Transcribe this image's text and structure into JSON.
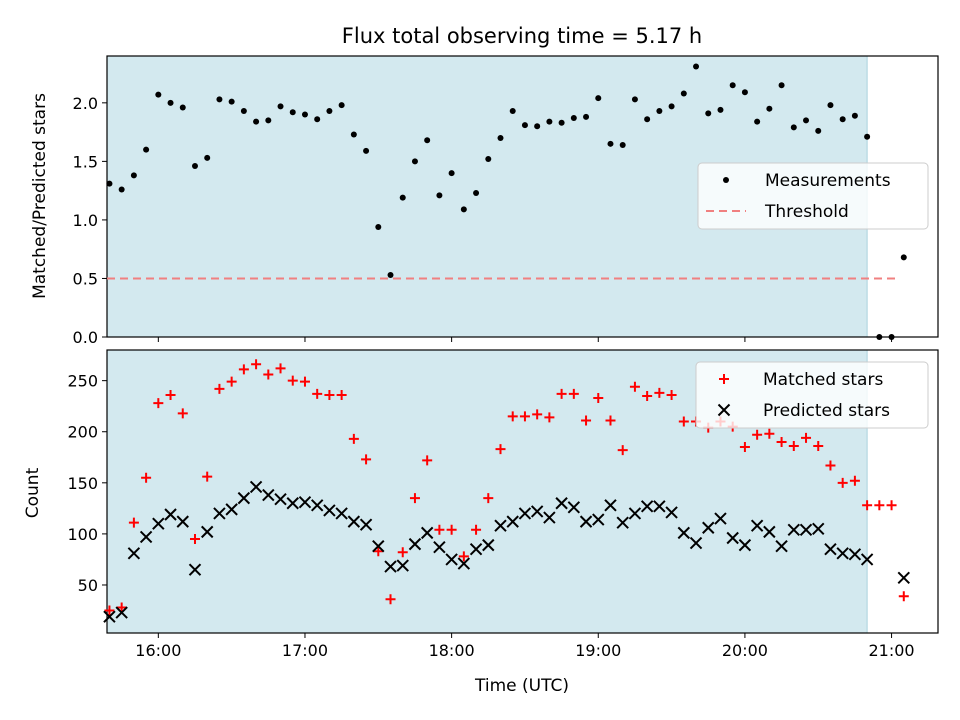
{
  "title": "Flux total observing time = 5.17 h",
  "chart_data": [
    {
      "type": "scatter",
      "ylabel": "Matched/Predicted stars",
      "xlabel": "",
      "xlim": [
        "15:39",
        "21:19"
      ],
      "ylim": [
        0,
        2.4
      ],
      "yticks": [
        "0.0",
        "0.5",
        "1.0",
        "1.5",
        "2.0"
      ],
      "yticks_values": [
        0,
        0.5,
        1.0,
        1.5,
        2.0
      ],
      "observing_window": [
        "15:39",
        "20:50"
      ],
      "legend": {
        "location": "center-right",
        "entries": [
          {
            "label": "Measurements",
            "marker": "dot",
            "color": "#000000"
          },
          {
            "label": "Threshold",
            "marker": "dashed-line",
            "color": "#f08080"
          }
        ]
      },
      "threshold": {
        "value": 0.5,
        "x": [
          "15:39",
          "21:03"
        ]
      },
      "series": [
        {
          "name": "Measurements",
          "points": [
            [
              "15:40",
              1.31
            ],
            [
              "15:45",
              1.26
            ],
            [
              "15:50",
              1.38
            ],
            [
              "15:55",
              1.6
            ],
            [
              "16:00",
              2.07
            ],
            [
              "16:05",
              2.0
            ],
            [
              "16:10",
              1.96
            ],
            [
              "16:15",
              1.46
            ],
            [
              "16:20",
              1.53
            ],
            [
              "16:25",
              2.03
            ],
            [
              "16:30",
              2.01
            ],
            [
              "16:35",
              1.93
            ],
            [
              "16:40",
              1.84
            ],
            [
              "16:45",
              1.85
            ],
            [
              "16:50",
              1.97
            ],
            [
              "16:55",
              1.92
            ],
            [
              "17:00",
              1.9
            ],
            [
              "17:05",
              1.86
            ],
            [
              "17:10",
              1.93
            ],
            [
              "17:15",
              1.98
            ],
            [
              "17:20",
              1.73
            ],
            [
              "17:25",
              1.59
            ],
            [
              "17:30",
              0.94
            ],
            [
              "17:35",
              0.53
            ],
            [
              "17:40",
              1.19
            ],
            [
              "17:45",
              1.5
            ],
            [
              "17:50",
              1.68
            ],
            [
              "17:55",
              1.21
            ],
            [
              "18:00",
              1.4
            ],
            [
              "18:05",
              1.09
            ],
            [
              "18:10",
              1.23
            ],
            [
              "18:15",
              1.52
            ],
            [
              "18:20",
              1.7
            ],
            [
              "18:25",
              1.93
            ],
            [
              "18:30",
              1.81
            ],
            [
              "18:35",
              1.8
            ],
            [
              "18:40",
              1.84
            ],
            [
              "18:45",
              1.83
            ],
            [
              "18:50",
              1.87
            ],
            [
              "18:55",
              1.88
            ],
            [
              "19:00",
              2.04
            ],
            [
              "19:05",
              1.65
            ],
            [
              "19:10",
              1.64
            ],
            [
              "19:15",
              2.03
            ],
            [
              "19:20",
              1.86
            ],
            [
              "19:25",
              1.93
            ],
            [
              "19:30",
              1.97
            ],
            [
              "19:35",
              2.08
            ],
            [
              "19:40",
              2.31
            ],
            [
              "19:45",
              1.91
            ],
            [
              "19:50",
              1.94
            ],
            [
              "19:55",
              2.15
            ],
            [
              "20:00",
              2.09
            ],
            [
              "20:05",
              1.84
            ],
            [
              "20:10",
              1.95
            ],
            [
              "20:15",
              2.15
            ],
            [
              "20:20",
              1.79
            ],
            [
              "20:25",
              1.85
            ],
            [
              "20:30",
              1.76
            ],
            [
              "20:35",
              1.98
            ],
            [
              "20:40",
              1.86
            ],
            [
              "20:45",
              1.89
            ],
            [
              "20:50",
              1.71
            ],
            [
              "20:55",
              0.0
            ],
            [
              "21:00",
              0.0
            ],
            [
              "21:05",
              0.68
            ]
          ]
        }
      ]
    },
    {
      "type": "scatter",
      "ylabel": "Count",
      "xlabel": "Time (UTC)",
      "xlim": [
        "15:39",
        "21:19"
      ],
      "xticks": [
        "16:00",
        "17:00",
        "18:00",
        "19:00",
        "20:00",
        "21:00"
      ],
      "ylim": [
        3,
        280
      ],
      "yticks": [
        "50",
        "100",
        "150",
        "200",
        "250"
      ],
      "yticks_values": [
        50,
        100,
        150,
        200,
        250
      ],
      "observing_window": [
        "15:39",
        "20:50"
      ],
      "legend": {
        "location": "top-right",
        "entries": [
          {
            "label": "Matched stars",
            "marker": "plus",
            "color": "#ff0000"
          },
          {
            "label": "Predicted stars",
            "marker": "x",
            "color": "#000000"
          }
        ]
      },
      "series": [
        {
          "name": "Matched stars",
          "points": [
            [
              "15:40",
              25
            ],
            [
              "15:45",
              28
            ],
            [
              "15:50",
              111
            ],
            [
              "15:55",
              155
            ],
            [
              "16:00",
              228
            ],
            [
              "16:05",
              236
            ],
            [
              "16:10",
              218
            ],
            [
              "16:15",
              95
            ],
            [
              "16:20",
              156
            ],
            [
              "16:25",
              242
            ],
            [
              "16:30",
              249
            ],
            [
              "16:35",
              261
            ],
            [
              "16:40",
              266
            ],
            [
              "16:45",
              256
            ],
            [
              "16:50",
              262
            ],
            [
              "16:55",
              250
            ],
            [
              "17:00",
              249
            ],
            [
              "17:05",
              237
            ],
            [
              "17:10",
              236
            ],
            [
              "17:15",
              236
            ],
            [
              "17:20",
              193
            ],
            [
              "17:25",
              173
            ],
            [
              "17:30",
              83
            ],
            [
              "17:35",
              36
            ],
            [
              "17:40",
              82
            ],
            [
              "17:45",
              135
            ],
            [
              "17:50",
              172
            ],
            [
              "17:55",
              104
            ],
            [
              "18:00",
              104
            ],
            [
              "18:05",
              78
            ],
            [
              "18:10",
              104
            ],
            [
              "18:15",
              135
            ],
            [
              "18:20",
              183
            ],
            [
              "18:25",
              215
            ],
            [
              "18:30",
              215
            ],
            [
              "18:35",
              217
            ],
            [
              "18:40",
              214
            ],
            [
              "18:45",
              237
            ],
            [
              "18:50",
              237
            ],
            [
              "18:55",
              211
            ],
            [
              "19:00",
              233
            ],
            [
              "19:05",
              211
            ],
            [
              "19:10",
              182
            ],
            [
              "19:15",
              244
            ],
            [
              "19:20",
              235
            ],
            [
              "19:25",
              238
            ],
            [
              "19:30",
              236
            ],
            [
              "19:35",
              210
            ],
            [
              "19:40",
              210
            ],
            [
              "19:45",
              204
            ],
            [
              "19:50",
              210
            ],
            [
              "19:55",
              205
            ],
            [
              "20:00",
              185
            ],
            [
              "20:05",
              197
            ],
            [
              "20:10",
              198
            ],
            [
              "20:15",
              190
            ],
            [
              "20:20",
              186
            ],
            [
              "20:25",
              194
            ],
            [
              "20:30",
              186
            ],
            [
              "20:35",
              167
            ],
            [
              "20:40",
              150
            ],
            [
              "20:45",
              152
            ],
            [
              "20:50",
              128
            ],
            [
              "20:55",
              128
            ],
            [
              "21:00",
              128
            ],
            [
              "21:05",
              39
            ]
          ]
        },
        {
          "name": "Predicted stars",
          "points": [
            [
              "15:40",
              19
            ],
            [
              "15:45",
              23
            ],
            [
              "15:50",
              81
            ],
            [
              "15:55",
              97
            ],
            [
              "16:00",
              110
            ],
            [
              "16:05",
              119
            ],
            [
              "16:10",
              112
            ],
            [
              "16:15",
              65
            ],
            [
              "16:20",
              102
            ],
            [
              "16:25",
              120
            ],
            [
              "16:30",
              124
            ],
            [
              "16:35",
              135
            ],
            [
              "16:40",
              146
            ],
            [
              "16:45",
              138
            ],
            [
              "16:50",
              134
            ],
            [
              "16:55",
              130
            ],
            [
              "17:00",
              131
            ],
            [
              "17:05",
              128
            ],
            [
              "17:10",
              123
            ],
            [
              "17:15",
              120
            ],
            [
              "17:20",
              112
            ],
            [
              "17:25",
              109
            ],
            [
              "17:30",
              88
            ],
            [
              "17:35",
              68
            ],
            [
              "17:40",
              69
            ],
            [
              "17:45",
              90
            ],
            [
              "17:50",
              101
            ],
            [
              "17:55",
              87
            ],
            [
              "18:00",
              75
            ],
            [
              "18:05",
              71
            ],
            [
              "18:10",
              85
            ],
            [
              "18:15",
              89
            ],
            [
              "18:20",
              108
            ],
            [
              "18:25",
              112
            ],
            [
              "18:30",
              120
            ],
            [
              "18:35",
              122
            ],
            [
              "18:40",
              116
            ],
            [
              "18:45",
              130
            ],
            [
              "18:50",
              126
            ],
            [
              "18:55",
              112
            ],
            [
              "19:00",
              114
            ],
            [
              "19:05",
              128
            ],
            [
              "19:10",
              111
            ],
            [
              "19:15",
              120
            ],
            [
              "19:20",
              127
            ],
            [
              "19:25",
              127
            ],
            [
              "19:30",
              121
            ],
            [
              "19:35",
              101
            ],
            [
              "19:40",
              91
            ],
            [
              "19:45",
              106
            ],
            [
              "19:50",
              115
            ],
            [
              "19:55",
              96
            ],
            [
              "20:00",
              89
            ],
            [
              "20:05",
              108
            ],
            [
              "20:10",
              102
            ],
            [
              "20:15",
              88
            ],
            [
              "20:20",
              104
            ],
            [
              "20:25",
              104
            ],
            [
              "20:30",
              105
            ],
            [
              "20:35",
              85
            ],
            [
              "20:40",
              81
            ],
            [
              "20:45",
              80
            ],
            [
              "20:50",
              75
            ],
            [
              "21:05",
              57
            ]
          ]
        }
      ]
    }
  ],
  "colors": {
    "window_fill": "#d3e9ef",
    "window_edge": "#a9d2dc",
    "threshold": "#f08080",
    "matched": "#ff0000",
    "predicted": "#000000",
    "measurement": "#000000"
  }
}
